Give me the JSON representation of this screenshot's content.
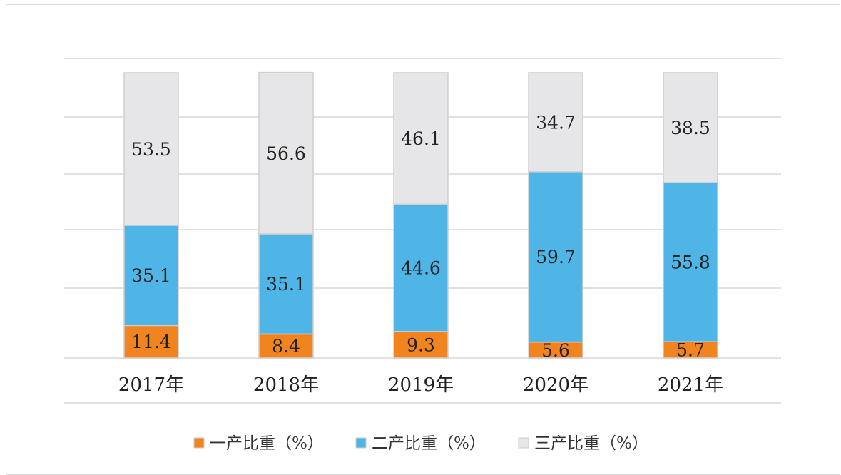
{
  "chart_data": {
    "type": "bar",
    "stacked": true,
    "categories": [
      "2017年",
      "2018年",
      "2019年",
      "2020年",
      "2021年"
    ],
    "series": [
      {
        "name": "一产比重（%）",
        "color": "#f28420",
        "values": [
          11.4,
          8.4,
          9.3,
          5.6,
          5.7
        ]
      },
      {
        "name": "二产比重（%）",
        "color": "#4fb4e6",
        "values": [
          35.1,
          35.1,
          44.6,
          59.7,
          55.8
        ]
      },
      {
        "name": "三产比重（%）",
        "color": "#e6e6e8",
        "values": [
          53.5,
          56.6,
          46.1,
          34.7,
          38.5
        ]
      }
    ],
    "title": "",
    "xlabel": "",
    "ylabel": "",
    "ylim": [
      0,
      100
    ],
    "grid": true,
    "legend_position": "bottom",
    "data_labels": true
  }
}
